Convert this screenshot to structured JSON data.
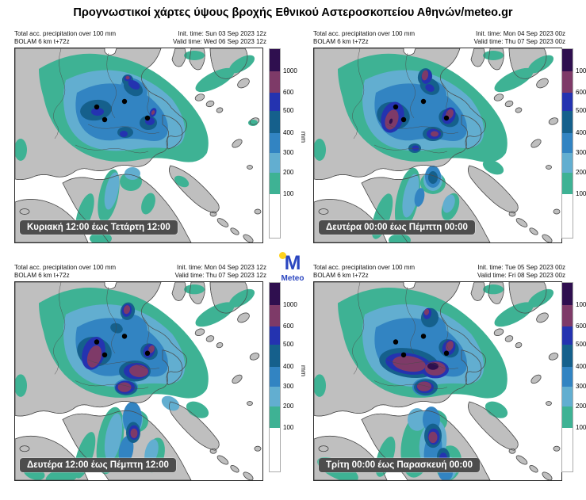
{
  "title": "Προγνωστικοί χάρτες ύψους βροχής Εθνικού Αστεροσκοπείου Αθηνών/meteo.gr",
  "logo": {
    "monogram": "M",
    "label": "Meteo"
  },
  "colors": {
    "land": "#bfbfbf",
    "sea": "#ffffff",
    "coast": "#4a4a4a",
    "marker": "#000000",
    "label_bg": "#4d4d4d",
    "label_fg": "#ffffff",
    "logo_m": "#2b46c0",
    "logo_dot": "#ffd21e",
    "title_color": "#000000"
  },
  "colorbar": {
    "unit": "mm",
    "segments": [
      {
        "color": "#2f0f4f",
        "label": "1000"
      },
      {
        "color": "#7e3a68",
        "label": "600"
      },
      {
        "color": "#2433b0",
        "label": "500"
      },
      {
        "color": "#15608c",
        "label": "400"
      },
      {
        "color": "#3284c2",
        "label": "300"
      },
      {
        "color": "#62aed0",
        "label": "200"
      },
      {
        "color": "#3eb294",
        "label": "100"
      },
      {
        "color": "#ffffff",
        "label": ""
      }
    ]
  },
  "panels": [
    {
      "info1": "Total acc. precipitation over 100 mm",
      "info2": "BOLAM 6 km t+72z",
      "init_time": "Init. time: Sun 03 Sep 2023 12z",
      "valid_time": "Valid time: Wed 06 Sep 2023 12z",
      "period": "Κυριακή 12:00 έως Τετάρτη 12:00"
    },
    {
      "info1": "Total acc. precipitation over 100 mm",
      "info2": "BOLAM 6 km t+72z",
      "init_time": "Init. time: Mon 04 Sep 2023 00z",
      "valid_time": "Valid time: Thu 07 Sep 2023 00z",
      "period": "Δευτέρα 00:00 έως Πέμπτη 00:00"
    },
    {
      "info1": "Total acc. precipitation over 100 mm",
      "info2": "BOLAM 6 km t+72z",
      "init_time": "Init. time: Mon 04 Sep 2023 12z",
      "valid_time": "Valid time: Thu 07 Sep 2023 12z",
      "period": "Δευτέρα 12:00 έως Πέμπτη 12:00"
    },
    {
      "info1": "Total acc. precipitation over 100 mm",
      "info2": "BOLAM 6 km t+72z",
      "init_time": "Init. time: Tue 05 Sep 2023 00z",
      "valid_time": "Valid time: Fri 08 Sep 2023 00z",
      "period": "Τρίτη 00:00 έως Παρασκευή 00:00"
    }
  ]
}
